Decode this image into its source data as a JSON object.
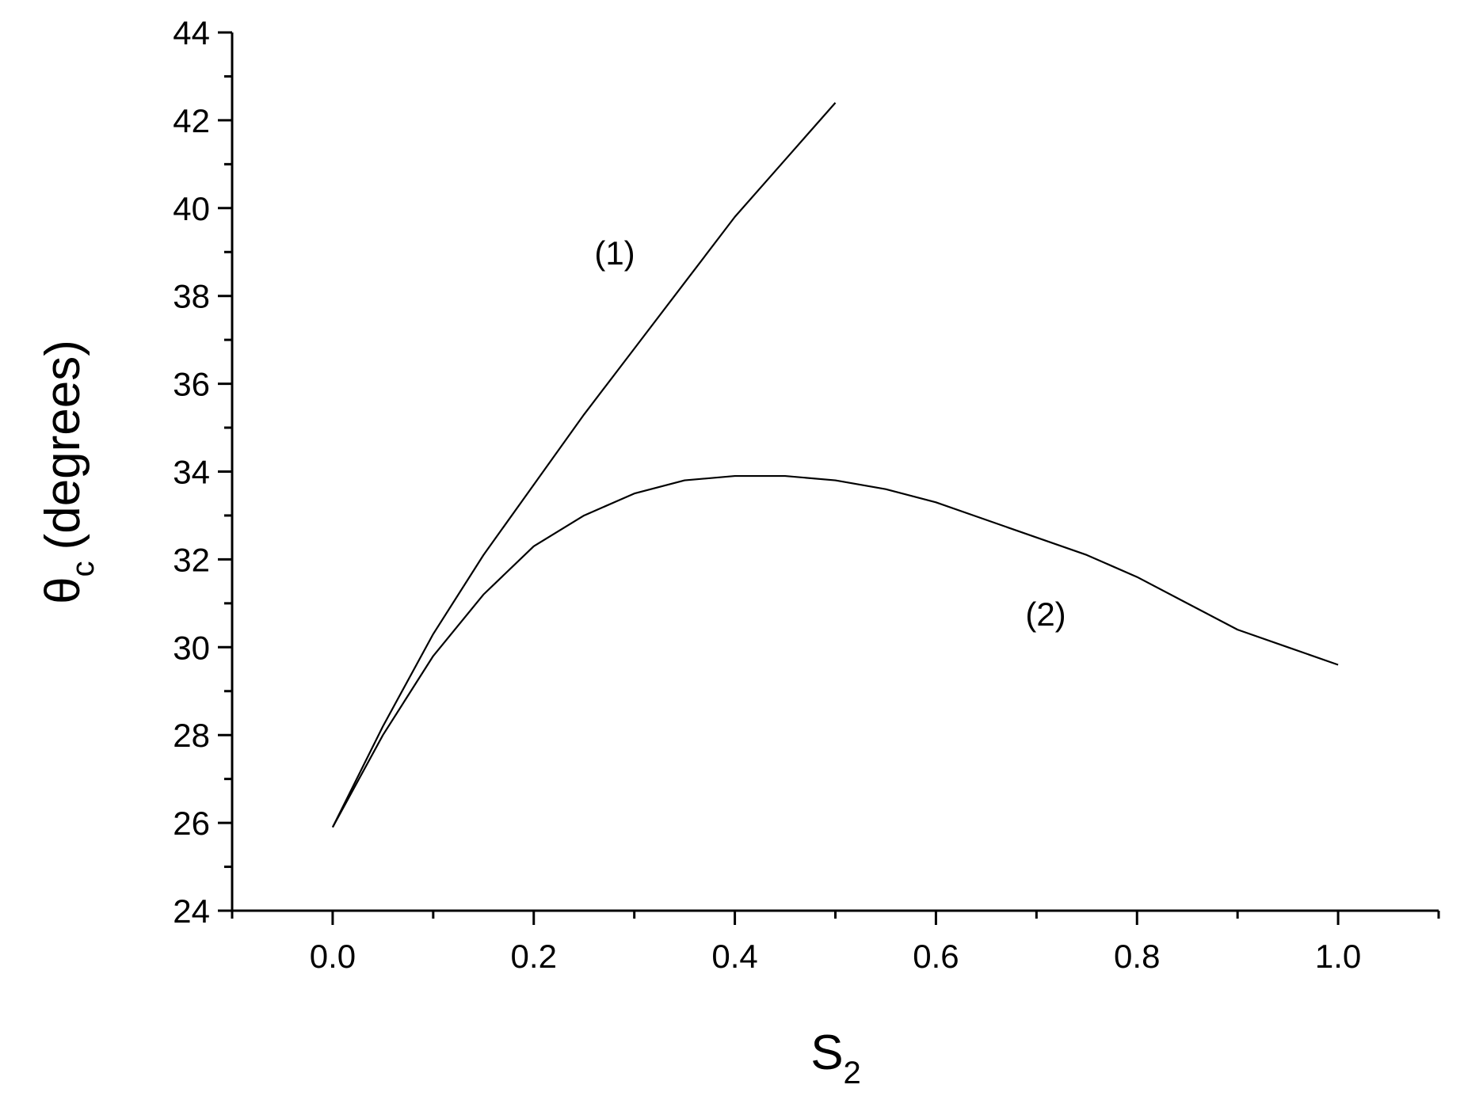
{
  "chart_data": {
    "type": "line",
    "x_label": "S",
    "x_label_sub": "2",
    "y_label": "θ",
    "y_label_sub": "c",
    "y_label_unit": "(degrees)",
    "annotations": [
      "(1)",
      "(2)"
    ],
    "xlim": [
      -0.1,
      1.1
    ],
    "ylim": [
      24,
      44
    ],
    "xticks": [
      {
        "value": 0,
        "label": "0.0"
      },
      0.2,
      0.4,
      0.6,
      0.8,
      {
        "value": 1,
        "label": "1.0"
      }
    ],
    "xminorticks": [
      -0.1,
      0.1,
      0.3,
      0.5,
      0.7,
      0.9,
      1.1
    ],
    "yticks": [
      24,
      26,
      28,
      30,
      32,
      34,
      36,
      38,
      40,
      42,
      44
    ],
    "yminorticks": [
      25,
      27,
      29,
      31,
      33,
      35,
      37,
      39,
      41,
      43
    ],
    "grid": false,
    "series": [
      {
        "color": "#000000",
        "x": [
          0,
          0.05,
          0.1,
          0.15,
          0.2,
          0.25,
          0.3,
          0.35,
          0.4,
          0.45,
          0.5
        ],
        "values": [
          25.9,
          28.2,
          30.3,
          32.1,
          33.7,
          35.3,
          36.8,
          38.3,
          39.8,
          41.1,
          42.4
        ]
      },
      {
        "color": "#000000",
        "x": [
          0,
          0.05,
          0.1,
          0.15,
          0.2,
          0.25,
          0.3,
          0.35,
          0.4,
          0.45,
          0.5,
          0.55,
          0.6,
          0.65,
          0.7,
          0.75,
          0.8,
          0.85,
          0.9,
          0.95,
          1.0
        ],
        "values": [
          25.9,
          28.0,
          29.8,
          31.2,
          32.3,
          33.0,
          33.5,
          33.8,
          33.9,
          33.9,
          33.8,
          33.6,
          33.3,
          32.9,
          32.5,
          32.1,
          31.6,
          31.0,
          30.4,
          30.0,
          29.6
        ]
      }
    ]
  }
}
